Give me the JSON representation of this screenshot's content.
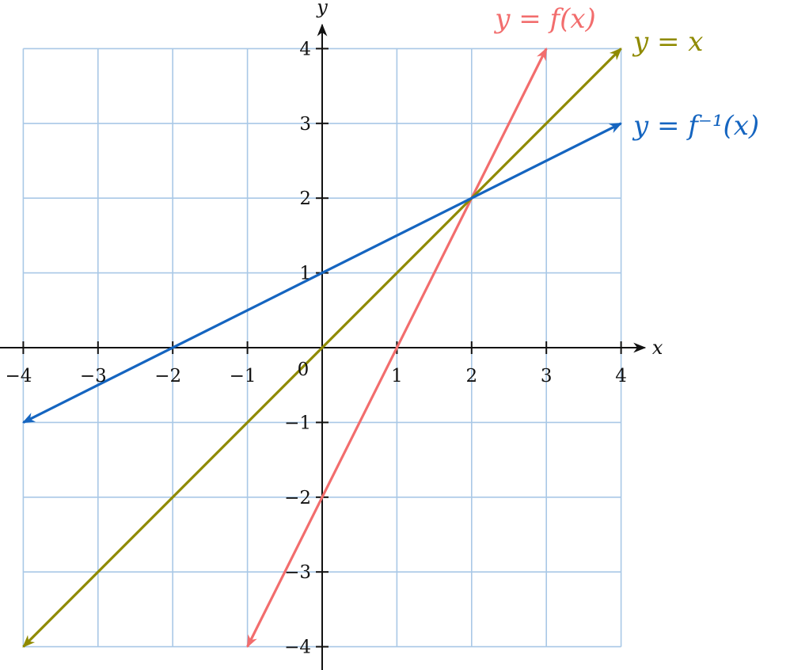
{
  "chart_data": {
    "type": "line",
    "xlabel": "x",
    "ylabel": "y",
    "xlim": [
      -4,
      4
    ],
    "ylim": [
      -4,
      4
    ],
    "grid": true,
    "x_ticks": [
      "−4",
      "−3",
      "−2",
      "−1",
      "1",
      "2",
      "3",
      "4"
    ],
    "y_ticks": [
      "−4",
      "−3",
      "−2",
      "−1",
      "1",
      "2",
      "3",
      "4"
    ],
    "origin_label": "0",
    "series": [
      {
        "name": "y = f(x)",
        "color": "#f26d6d",
        "points": [
          [
            -1,
            -4
          ],
          [
            3,
            4
          ]
        ],
        "arrows": "both"
      },
      {
        "name": "y = x",
        "color": "#8f8a00",
        "points": [
          [
            -4,
            -4
          ],
          [
            4,
            4
          ]
        ],
        "arrows": "both"
      },
      {
        "name": "y = f⁻¹(x)",
        "color": "#1565c0",
        "points": [
          [
            -4,
            -1
          ],
          [
            4,
            3
          ]
        ],
        "arrows": "both"
      }
    ]
  }
}
